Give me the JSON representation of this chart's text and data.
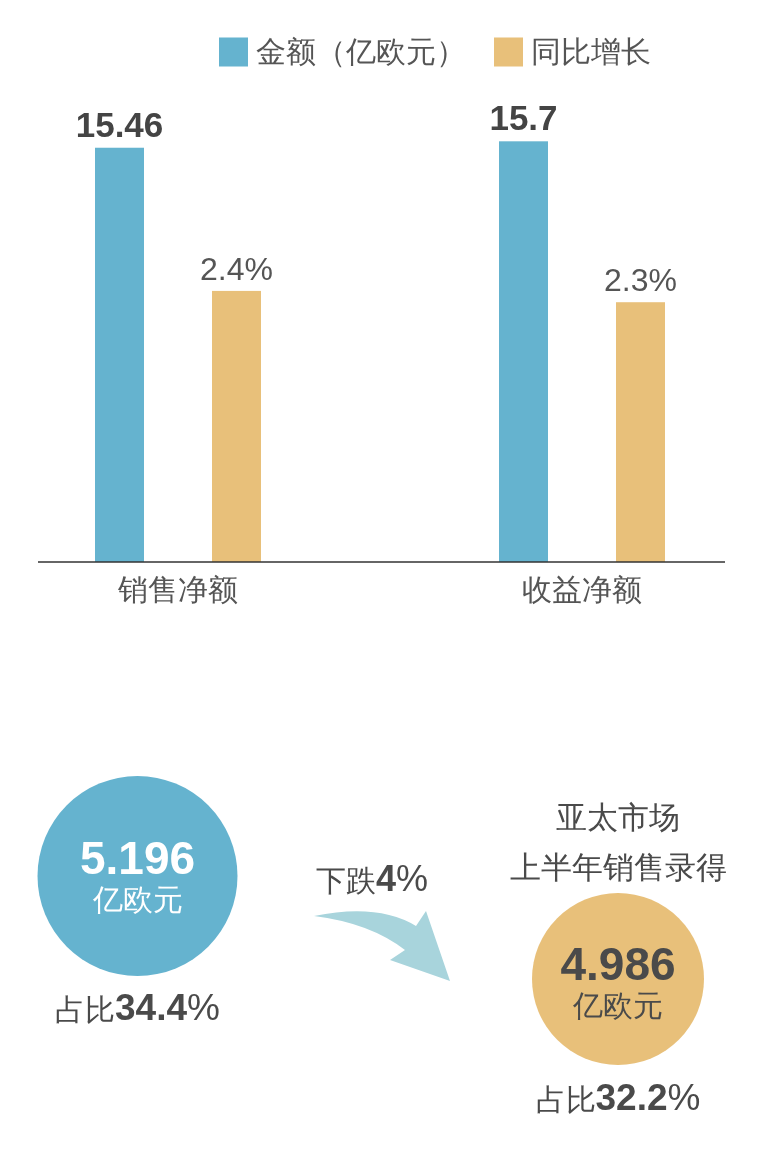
{
  "chart_data": [
    {
      "type": "bar",
      "categories": [
        "销售净额",
        "收益净额"
      ],
      "series": [
        {
          "name": "金额（亿欧元）",
          "color": "#65b3cf",
          "values": [
            15.46,
            15.7
          ],
          "value_labels": [
            "15.46",
            "15.7"
          ]
        },
        {
          "name": "同比增长",
          "color": "#e8c07a",
          "values": [
            2.4,
            2.3
          ],
          "value_labels": [
            "2.4%",
            "2.3%"
          ],
          "axis": "y2"
        }
      ],
      "legend": "top",
      "tick_labels": "x"
    },
    {
      "type": "other",
      "annotations": [
        "5.196",
        "亿欧元",
        "占比34.4%",
        "下跌4%",
        "亚太市场",
        "上半年销售录得",
        "4.986",
        "亿欧元",
        "占比32.2%"
      ]
    }
  ]
}
